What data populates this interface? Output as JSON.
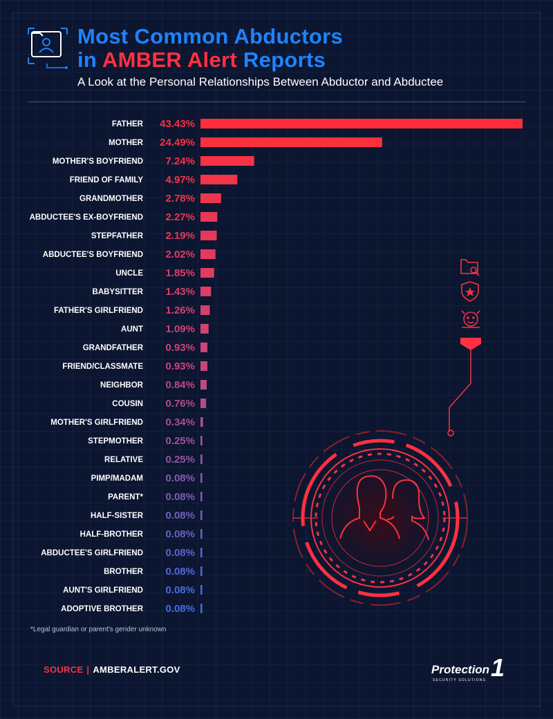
{
  "header": {
    "title_line1": "Most Common Abductors",
    "title_line2_pre": "in ",
    "title_line2_highlight": "AMBER Alert",
    "title_line2_post": " Reports",
    "subtitle": "A Look at the Personal Relationships Between Abductor and Abductee",
    "icon": "missing-child-folder-icon"
  },
  "colors": {
    "background": "#0c1630",
    "title_blue": "#1e83ff",
    "accent_red": "#ff3140",
    "bar_top": "#ff2e3a",
    "bar_mid": "#c9467c",
    "bar_bottom": "#3d6fe6"
  },
  "chart_data": {
    "type": "bar",
    "orientation": "horizontal",
    "value_format": "percent",
    "categories": [
      "FATHER",
      "MOTHER",
      "MOTHER'S BOYFRIEND",
      "FRIEND OF FAMILY",
      "GRANDMOTHER",
      "ABDUCTEE'S EX-BOYFRIEND",
      "STEPFATHER",
      "ABDUCTEE'S BOYFRIEND",
      "UNCLE",
      "BABYSITTER",
      "FATHER'S GIRLFRIEND",
      "AUNT",
      "GRANDFATHER",
      "FRIEND/CLASSMATE",
      "NEIGHBOR",
      "COUSIN",
      "MOTHER'S GIRLFRIEND",
      "STEPMOTHER",
      "RELATIVE",
      "PIMP/MADAM",
      "PARENT*",
      "HALF-SISTER",
      "HALF-BROTHER",
      "ABDUCTEE'S GIRLFRIEND",
      "BROTHER",
      "AUNT'S GIRLFRIEND",
      "ADOPTIVE BROTHER"
    ],
    "values": [
      43.43,
      24.49,
      7.24,
      4.97,
      2.78,
      2.27,
      2.19,
      2.02,
      1.85,
      1.43,
      1.26,
      1.09,
      0.93,
      0.93,
      0.84,
      0.76,
      0.34,
      0.25,
      0.25,
      0.08,
      0.08,
      0.08,
      0.08,
      0.08,
      0.08,
      0.08,
      0.08
    ],
    "value_labels": [
      "43.43%",
      "24.49%",
      "7.24%",
      "4.97%",
      "2.78%",
      "2.27%",
      "2.19%",
      "2.02%",
      "1.85%",
      "1.43%",
      "1.26%",
      "1.09%",
      "0.93%",
      "0.93%",
      "0.84%",
      "0.76%",
      "0.34%",
      "0.25%",
      "0.25%",
      "0.08%",
      "0.08%",
      "0.08%",
      "0.08%",
      "0.08%",
      "0.08%",
      "0.08%",
      "0.08%"
    ],
    "grid": false,
    "legend": "none"
  },
  "footnote": "*Legal guardian or parent's gender unknown",
  "source": {
    "label": "SOURCE",
    "separator": "|",
    "value": "AMBERALERT.GOV"
  },
  "logo": {
    "text": "Protection",
    "number": "1",
    "tagline": "SECURITY SOLUTIONS"
  },
  "decor_icons": [
    "folder-search-icon",
    "shield-star-icon",
    "baby-icon",
    "target-scope-icon"
  ]
}
